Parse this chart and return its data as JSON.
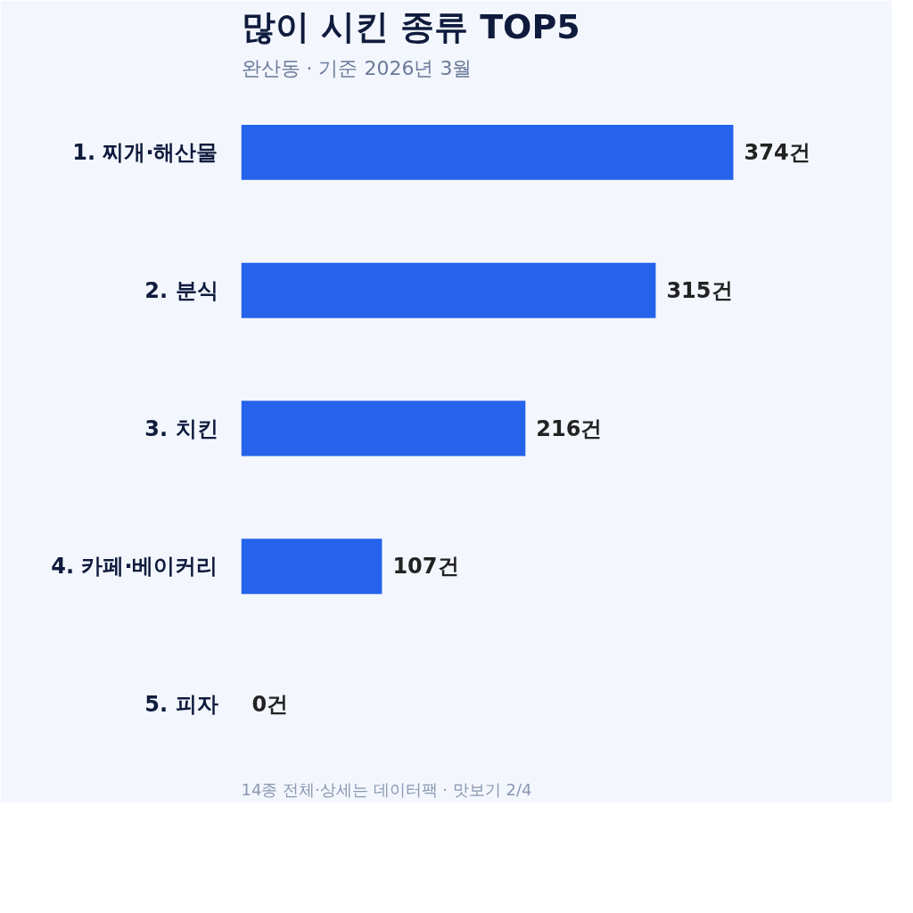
{
  "chart_data": {
    "type": "bar",
    "orientation": "horizontal",
    "title": "많이 시킨 종류 TOP5",
    "subtitle": "완산동 · 기준 2026년 3월",
    "categories": [
      "1. 찌개·해산물",
      "2. 분식",
      "3. 치킨",
      "4. 카페·베이커리",
      "5. 피자"
    ],
    "values": [
      374,
      315,
      216,
      107,
      0
    ],
    "color": "#2563eb",
    "value_labels": [
      "374건",
      "315건",
      "216건",
      "107건",
      "0건"
    ],
    "tick_labels": "y",
    "grid": false,
    "annotations": [
      "14종 전체·상세는 데이터팩 · 맛보기 2/4"
    ]
  }
}
